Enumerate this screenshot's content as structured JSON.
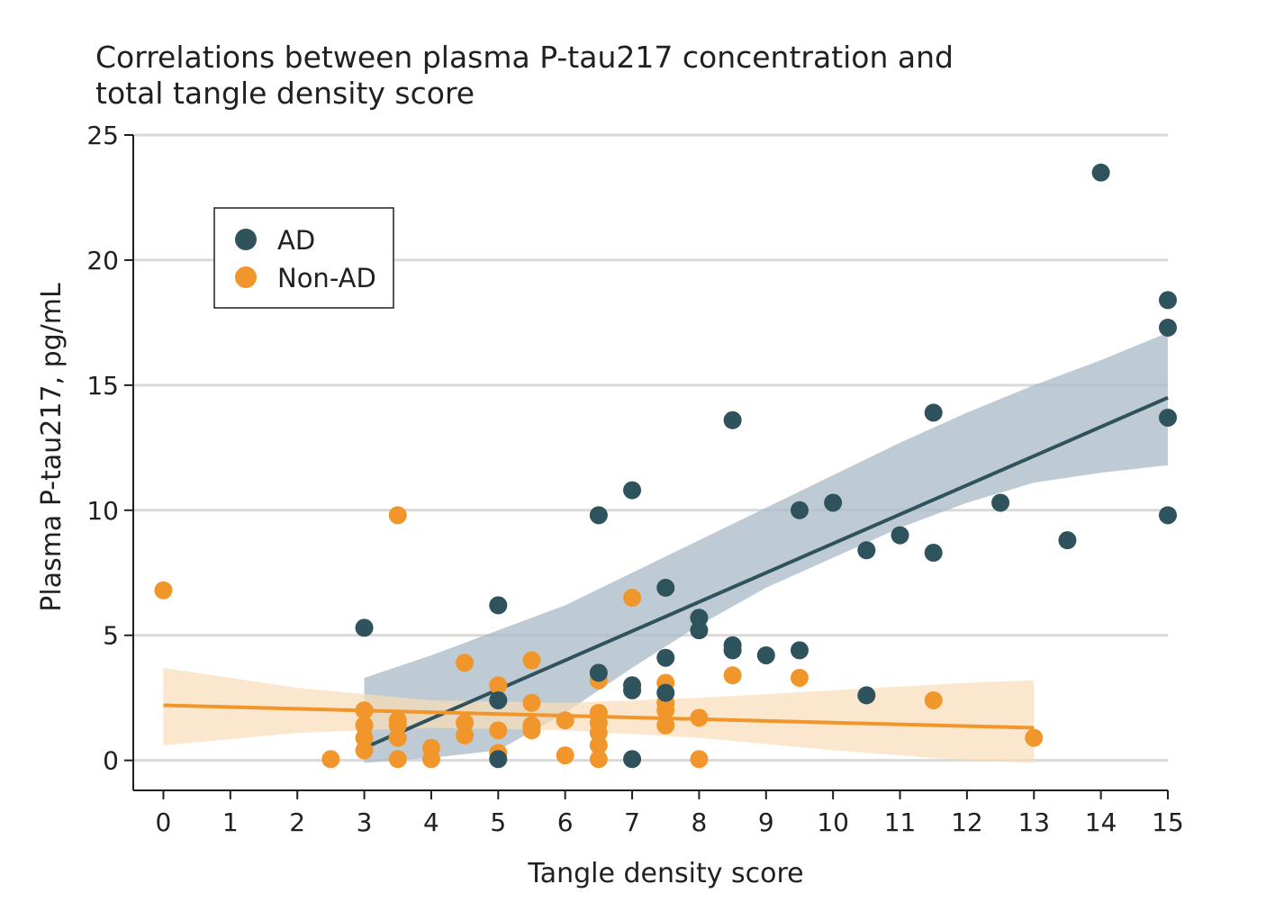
{
  "chart_data": {
    "type": "scatter",
    "title_lines": [
      "Correlations between plasma P-tau217 concentration and",
      "total tangle density score"
    ],
    "xlabel": "Tangle density score",
    "ylabel": "Plasma P-tau217, pg/mL",
    "xlim": [
      -0.45,
      15
    ],
    "ylim": [
      -1.2,
      25
    ],
    "xticks": [
      0,
      1,
      2,
      3,
      4,
      5,
      6,
      7,
      8,
      9,
      10,
      11,
      12,
      13,
      14,
      15
    ],
    "yticks": [
      0,
      5,
      10,
      15,
      20,
      25
    ],
    "grid": "horizontal",
    "legend_position": "top-left",
    "series": [
      {
        "name": "AD",
        "color": "#2e535c",
        "band_color": "#a9bac6",
        "points": [
          [
            3,
            5.3
          ],
          [
            5,
            6.2
          ],
          [
            5,
            2.4
          ],
          [
            5,
            0.05
          ],
          [
            6.5,
            9.8
          ],
          [
            6.5,
            3.5
          ],
          [
            7,
            10.8
          ],
          [
            7,
            3.0
          ],
          [
            7,
            2.8
          ],
          [
            7,
            0.05
          ],
          [
            7.5,
            6.9
          ],
          [
            7.5,
            4.1
          ],
          [
            7.5,
            2.7
          ],
          [
            8,
            5.7
          ],
          [
            8,
            5.2
          ],
          [
            8.5,
            13.6
          ],
          [
            8.5,
            4.6
          ],
          [
            8.5,
            4.4
          ],
          [
            9,
            4.2
          ],
          [
            9.5,
            10.0
          ],
          [
            9.5,
            4.4
          ],
          [
            10,
            10.3
          ],
          [
            10.5,
            8.4
          ],
          [
            10.5,
            2.6
          ],
          [
            11,
            9.0
          ],
          [
            11.5,
            13.9
          ],
          [
            11.5,
            8.3
          ],
          [
            12.5,
            10.3
          ],
          [
            13.5,
            8.8
          ],
          [
            14,
            23.5
          ],
          [
            15,
            18.4
          ],
          [
            15,
            17.3
          ],
          [
            15,
            13.7
          ],
          [
            15,
            9.8
          ]
        ],
        "fit": {
          "x": [
            3,
            15
          ],
          "y": [
            0.5,
            14.5
          ]
        },
        "ci_band": {
          "x": [
            3,
            4,
            5,
            6,
            7,
            8,
            9,
            10,
            11,
            12,
            13,
            14,
            15
          ],
          "upper": [
            3.3,
            4.2,
            5.2,
            6.2,
            7.5,
            8.8,
            10.1,
            11.4,
            12.7,
            13.9,
            15.0,
            16.0,
            17.1
          ],
          "lower": [
            -0.1,
            0.1,
            0.4,
            1.9,
            3.7,
            5.4,
            6.9,
            8.1,
            9.3,
            10.3,
            11.1,
            11.5,
            11.8
          ]
        }
      },
      {
        "name": "Non-AD",
        "color": "#f0962a",
        "band_color": "#f9ddb8",
        "points": [
          [
            0,
            6.8
          ],
          [
            2.5,
            0.05
          ],
          [
            3,
            2.0
          ],
          [
            3,
            1.4
          ],
          [
            3,
            0.9
          ],
          [
            3,
            0.4
          ],
          [
            3.5,
            9.8
          ],
          [
            3.5,
            1.6
          ],
          [
            3.5,
            1.4
          ],
          [
            3.5,
            0.9
          ],
          [
            3.5,
            0.05
          ],
          [
            4,
            0.5
          ],
          [
            4,
            0.05
          ],
          [
            4.5,
            3.9
          ],
          [
            4.5,
            1.5
          ],
          [
            4.5,
            1.0
          ],
          [
            5,
            3.0
          ],
          [
            5,
            1.2
          ],
          [
            5,
            0.3
          ],
          [
            5.5,
            4.0
          ],
          [
            5.5,
            2.3
          ],
          [
            5.5,
            1.4
          ],
          [
            5.5,
            1.2
          ],
          [
            6,
            1.6
          ],
          [
            6,
            0.2
          ],
          [
            6.5,
            3.2
          ],
          [
            6.5,
            1.9
          ],
          [
            6.5,
            1.5
          ],
          [
            6.5,
            1.1
          ],
          [
            6.5,
            0.6
          ],
          [
            6.5,
            0.05
          ],
          [
            7,
            6.5
          ],
          [
            7.5,
            3.1
          ],
          [
            7.5,
            2.3
          ],
          [
            7.5,
            2.0
          ],
          [
            7.5,
            1.4
          ],
          [
            8,
            1.7
          ],
          [
            8,
            0.05
          ],
          [
            8.5,
            3.4
          ],
          [
            9.5,
            3.3
          ],
          [
            11.5,
            2.4
          ],
          [
            13,
            0.9
          ]
        ],
        "fit": {
          "x": [
            0,
            13
          ],
          "y": [
            2.2,
            1.3
          ]
        },
        "ci_band": {
          "x": [
            0,
            2,
            4,
            6,
            8,
            10,
            12,
            13
          ],
          "upper": [
            3.7,
            2.9,
            2.4,
            2.3,
            2.5,
            2.8,
            3.1,
            3.2
          ],
          "lower": [
            0.6,
            1.1,
            1.3,
            1.2,
            0.9,
            0.4,
            0.0,
            -0.1
          ]
        }
      }
    ]
  }
}
